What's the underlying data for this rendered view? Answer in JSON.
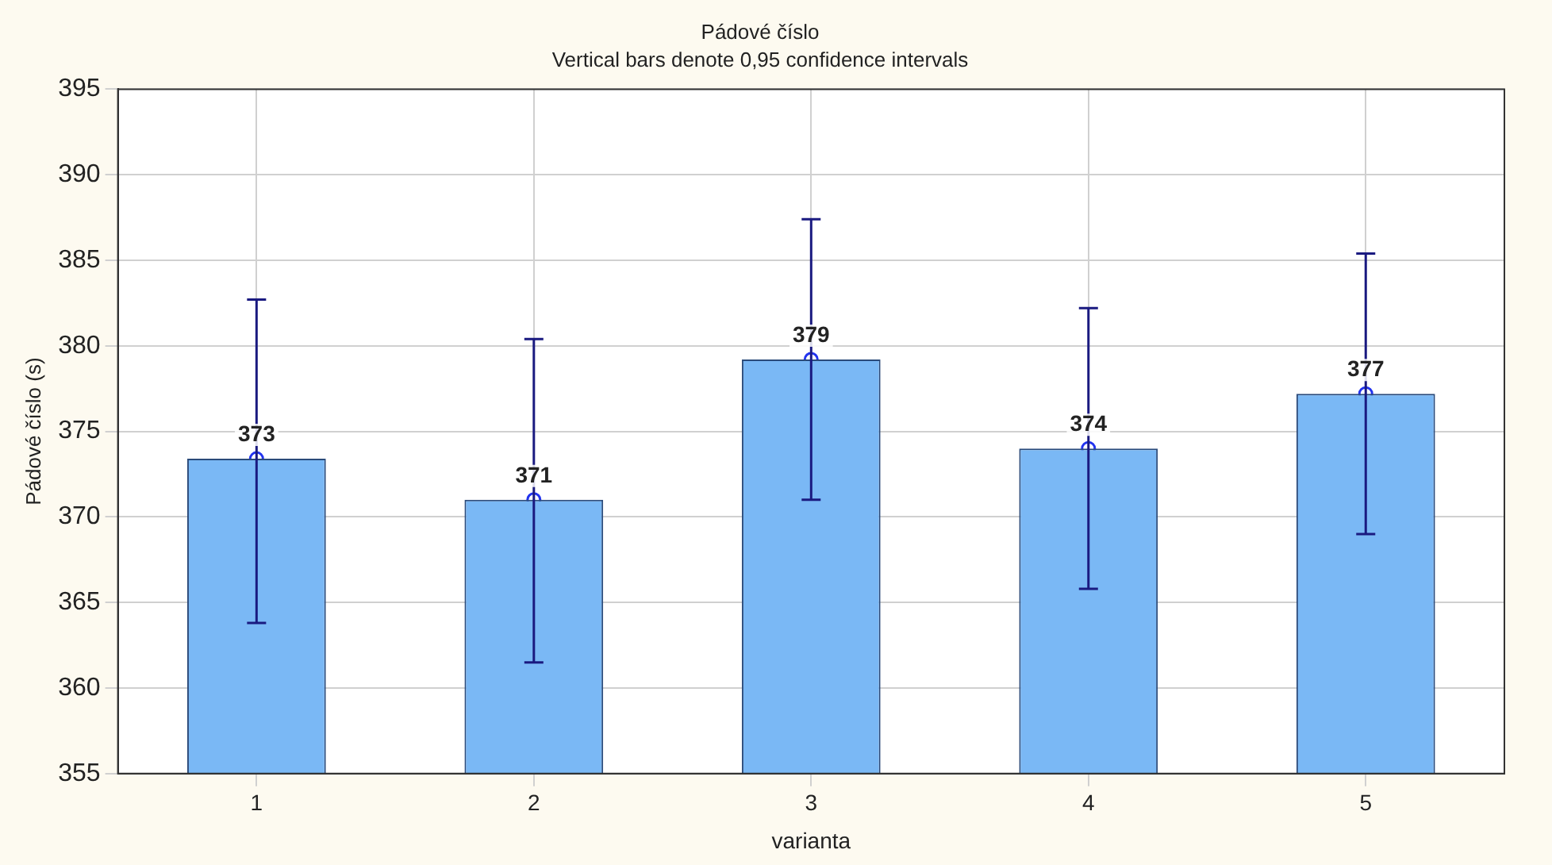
{
  "chart_data": {
    "type": "bar",
    "title": "Pádové číslo",
    "subtitle": "Vertical bars denote 0,95 confidence intervals",
    "xlabel": "varianta",
    "ylabel": "Pádové číslo (s)",
    "categories": [
      "1",
      "2",
      "3",
      "4",
      "5"
    ],
    "series": [
      {
        "color": "#7ab8f5",
        "values": [
          373.4,
          371.0,
          379.2,
          374.0,
          377.2
        ]
      },
      {
        "type": "scatter",
        "color": "#2233ee",
        "x": [
          "1",
          "2",
          "3",
          "4",
          "5"
        ],
        "values": [
          373.4,
          371.0,
          379.2,
          374.0,
          377.2
        ],
        "value_labels": [
          "373",
          "371",
          "379",
          "374",
          "377"
        ],
        "errors": [
          [
            363.8,
            382.7
          ],
          [
            361.5,
            380.4
          ],
          [
            371.0,
            387.4
          ],
          [
            365.8,
            382.2
          ],
          [
            369.0,
            385.4
          ]
        ]
      }
    ],
    "marker": "circle",
    "ylim": [
      355,
      395
    ],
    "yticks": [
      355,
      360,
      365,
      370,
      375,
      380,
      385,
      390,
      395
    ],
    "grid": true,
    "legend": false
  }
}
